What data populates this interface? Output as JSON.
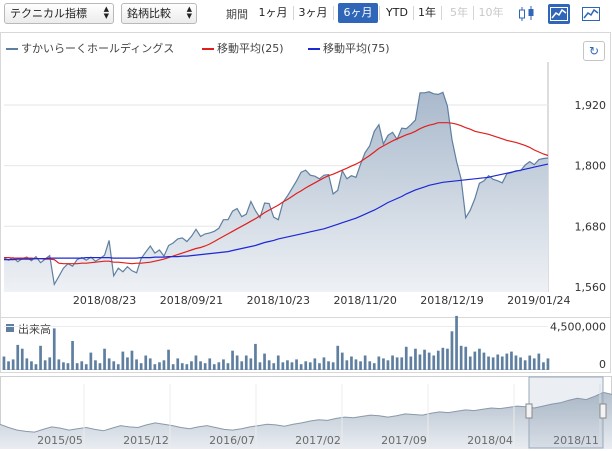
{
  "toolbar": {
    "indicator_select": "テクニカル指標",
    "compare_select": "銘柄比較",
    "period_label": "期間",
    "periods": [
      {
        "label": "1ヶ月",
        "state": "normal"
      },
      {
        "label": "3ヶ月",
        "state": "normal"
      },
      {
        "label": "6ヶ月",
        "state": "active"
      },
      {
        "label": "YTD",
        "state": "normal"
      },
      {
        "label": "1年",
        "state": "normal"
      },
      {
        "label": "5年",
        "state": "disabled"
      },
      {
        "label": "10年",
        "state": "disabled"
      }
    ],
    "chart_type_icons": [
      "candlestick-icon",
      "mountain-chart-icon",
      "line-chart-icon"
    ],
    "active_chart_type": "mountain-chart-icon"
  },
  "legend": [
    {
      "name": "すかいらーくホールディングス",
      "color": "#5f7fa0"
    },
    {
      "name": "移動平均(25)",
      "color": "#e0201d"
    },
    {
      "name": "移動平均(75)",
      "color": "#1d28d6"
    }
  ],
  "refresh_icon": "refresh-icon",
  "volume_title": "出来高",
  "chart_data": [
    {
      "type": "area",
      "title": "",
      "y_ticks": [
        "1,560",
        "1,680",
        "1,800",
        "1,920"
      ],
      "ylim": [
        1550,
        2005
      ],
      "x_ticks": [
        {
          "label": "2018/08/23",
          "i": 22
        },
        {
          "label": "2018/09/21",
          "i": 41
        },
        {
          "label": "2018/10/23",
          "i": 60
        },
        {
          "label": "2018/11/20",
          "i": 79
        },
        {
          "label": "2018/12/19",
          "i": 98
        },
        {
          "label": "2019/01/24",
          "i": 117
        }
      ],
      "n_points": 120,
      "series": [
        {
          "name": "すかいらーくホールディングス",
          "color": "#5f7fa0",
          "values": [
            1617,
            1613,
            1618,
            1610,
            1616,
            1619,
            1612,
            1620,
            1608,
            1615,
            1622,
            1565,
            1581,
            1597,
            1606,
            1601,
            1614,
            1618,
            1613,
            1619,
            1611,
            1616,
            1623,
            1652,
            1582,
            1597,
            1590,
            1600,
            1592,
            1588,
            1616,
            1629,
            1641,
            1627,
            1633,
            1621,
            1642,
            1647,
            1655,
            1657,
            1650,
            1660,
            1674,
            1660,
            1665,
            1667,
            1670,
            1676,
            1693,
            1693,
            1710,
            1715,
            1699,
            1704,
            1729,
            1711,
            1697,
            1726,
            1725,
            1698,
            1693,
            1727,
            1740,
            1755,
            1770,
            1787,
            1791,
            1781,
            1779,
            1774,
            1781,
            1782,
            1744,
            1751,
            1790,
            1774,
            1780,
            1777,
            1803,
            1826,
            1839,
            1868,
            1881,
            1843,
            1860,
            1866,
            1852,
            1874,
            1873,
            1881,
            1890,
            1944,
            1944,
            1946,
            1942,
            1941,
            1945,
            1918,
            1851,
            1808,
            1774,
            1697,
            1712,
            1735,
            1765,
            1770,
            1780,
            1773,
            1770,
            1766,
            1784,
            1786,
            1790,
            1790,
            1801,
            1808,
            1802,
            1812,
            1814,
            1815
          ]
        },
        {
          "name": "移動平均(25)",
          "color": "#e0201d",
          "values": [
            1618,
            1618,
            1617,
            1617,
            1617,
            1617,
            1617,
            1616,
            1616,
            1615,
            1615,
            1614,
            1607,
            1606,
            1606,
            1606,
            1606,
            1607,
            1607,
            1608,
            1609,
            1610,
            1611,
            1611,
            1609,
            1609,
            1608,
            1607,
            1606,
            1607,
            1607,
            1608,
            1609,
            1611,
            1613,
            1615,
            1618,
            1621,
            1624,
            1627,
            1630,
            1633,
            1636,
            1638,
            1641,
            1645,
            1650,
            1655,
            1660,
            1665,
            1670,
            1675,
            1680,
            1685,
            1690,
            1695,
            1701,
            1707,
            1712,
            1717,
            1722,
            1728,
            1733,
            1739,
            1745,
            1750,
            1756,
            1761,
            1766,
            1771,
            1776,
            1780,
            1783,
            1787,
            1791,
            1795,
            1799,
            1803,
            1808,
            1814,
            1820,
            1827,
            1834,
            1839,
            1844,
            1849,
            1853,
            1857,
            1861,
            1864,
            1868,
            1873,
            1877,
            1880,
            1882,
            1885,
            1885,
            1885,
            1884,
            1882,
            1879,
            1875,
            1872,
            1868,
            1866,
            1864,
            1862,
            1859,
            1856,
            1853,
            1850,
            1848,
            1846,
            1843,
            1840,
            1836,
            1831,
            1827,
            1823,
            1820
          ]
        },
        {
          "name": "移動平均(75)",
          "color": "#1d28d6",
          "values": [
            1614,
            1614,
            1614,
            1615,
            1615,
            1615,
            1615,
            1616,
            1616,
            1616,
            1617,
            1617,
            1617,
            1617,
            1617,
            1617,
            1617,
            1617,
            1618,
            1618,
            1618,
            1618,
            1618,
            1618,
            1617,
            1617,
            1617,
            1617,
            1617,
            1617,
            1618,
            1618,
            1618,
            1619,
            1619,
            1619,
            1620,
            1620,
            1620,
            1621,
            1621,
            1622,
            1623,
            1624,
            1625,
            1626,
            1627,
            1628,
            1629,
            1630,
            1632,
            1634,
            1636,
            1638,
            1640,
            1642,
            1645,
            1648,
            1650,
            1652,
            1655,
            1657,
            1659,
            1661,
            1663,
            1665,
            1667,
            1669,
            1671,
            1673,
            1675,
            1678,
            1681,
            1684,
            1687,
            1690,
            1693,
            1696,
            1700,
            1704,
            1708,
            1712,
            1717,
            1722,
            1727,
            1731,
            1735,
            1739,
            1744,
            1748,
            1752,
            1755,
            1758,
            1761,
            1763,
            1765,
            1767,
            1768,
            1769,
            1770,
            1771,
            1772,
            1773,
            1774,
            1775,
            1776,
            1777,
            1779,
            1781,
            1783,
            1785,
            1787,
            1789,
            1791,
            1793,
            1795,
            1797,
            1799,
            1801,
            1803
          ]
        }
      ]
    },
    {
      "type": "bar",
      "title": "出来高",
      "y_ticks": [
        "0",
        "4,500,000"
      ],
      "ylim": [
        0,
        6000000
      ],
      "series": [
        {
          "name": "出来高",
          "color": "#5f7fa0",
          "values": [
            1400000,
            900000,
            1100000,
            2600000,
            2200000,
            1200000,
            900000,
            600000,
            2500000,
            1000000,
            1300000,
            4300000,
            1100000,
            800000,
            700000,
            3000000,
            700000,
            900000,
            600000,
            1800000,
            1000000,
            700000,
            2200000,
            1200000,
            900000,
            600000,
            1900000,
            1300000,
            2000000,
            1100000,
            700000,
            1500000,
            1200000,
            600000,
            800000,
            1000000,
            2100000,
            600000,
            1200000,
            700000,
            600000,
            900000,
            1500000,
            900000,
            700000,
            1200000,
            600000,
            800000,
            1100000,
            700000,
            2000000,
            1500000,
            900000,
            1500000,
            1200000,
            2700000,
            800000,
            1700000,
            1000000,
            700000,
            1500000,
            800000,
            1000000,
            800000,
            1100000,
            600000,
            900000,
            800000,
            1200000,
            700000,
            1300000,
            900000,
            800000,
            2500000,
            1800000,
            1000000,
            1400000,
            1100000,
            900000,
            1500000,
            900000,
            700000,
            1400000,
            1200000,
            1000000,
            1500000,
            1300000,
            1300000,
            2400000,
            1400000,
            2200000,
            1600000,
            2100000,
            1800000,
            1500000,
            2000000,
            2300000,
            2200000,
            4000000,
            5600000,
            2500000,
            2400000,
            1400000,
            1900000,
            2200000,
            1800000,
            1400000,
            1300000,
            1600000,
            1400000,
            1700000,
            1900000,
            1500000,
            1300000,
            1000000,
            1500000,
            1200000,
            1700000,
            800000,
            1200000
          ]
        }
      ]
    },
    {
      "type": "area",
      "title": "",
      "x_ticks": [
        "2015/05",
        "2015/12",
        "2016/07",
        "2017/02",
        "2017/09",
        "2018/04",
        "2018/11"
      ],
      "series": [
        {
          "name": "すかいらーくホールディングス",
          "color": "#5f7fa0",
          "values": [
            35,
            30,
            26,
            24,
            23,
            27,
            31,
            29,
            26,
            28,
            30,
            27,
            25,
            29,
            33,
            31,
            30,
            34,
            37,
            35,
            33,
            30,
            28,
            31,
            33,
            30,
            27,
            26,
            28,
            31,
            33,
            35,
            34,
            32,
            35,
            37,
            40,
            42,
            41,
            44,
            46,
            45,
            47,
            49,
            48,
            46,
            48,
            51,
            50,
            49,
            52,
            54,
            53,
            55,
            57,
            56,
            58,
            60,
            59,
            61,
            63,
            62,
            60,
            63,
            66,
            68,
            72,
            75,
            73,
            78,
            84,
            81
          ]
        }
      ]
    }
  ]
}
